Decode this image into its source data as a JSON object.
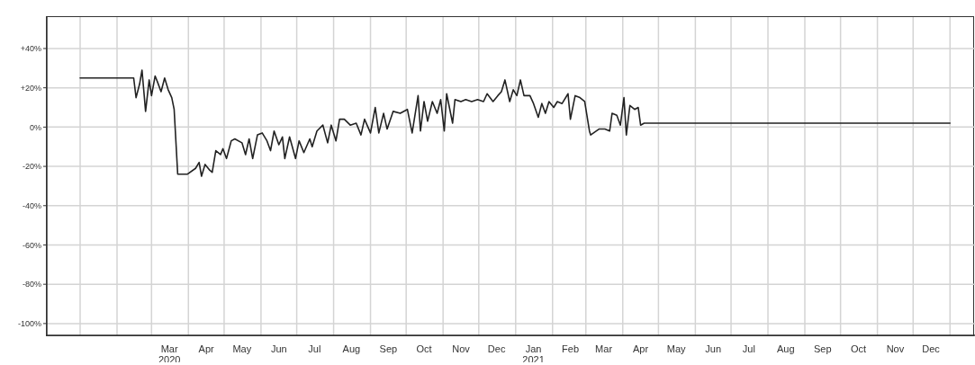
{
  "chart_data": {
    "type": "line",
    "x": [
      "2020-01-01",
      "2020-02-15",
      "2020-02-17",
      "2020-02-20",
      "2020-02-22",
      "2020-02-25",
      "2020-02-28",
      "2020-03-01",
      "2020-03-04",
      "2020-03-06",
      "2020-03-09",
      "2020-03-12",
      "2020-03-15",
      "2020-03-18",
      "2020-03-20",
      "2020-03-23",
      "2020-03-31",
      "2020-04-07",
      "2020-04-10",
      "2020-04-12",
      "2020-04-15",
      "2020-04-19",
      "2020-04-21",
      "2020-04-24",
      "2020-04-28",
      "2020-04-30",
      "2020-05-03",
      "2020-05-07",
      "2020-05-10",
      "2020-05-16",
      "2020-05-19",
      "2020-05-22",
      "2020-05-25",
      "2020-05-29",
      "2020-06-02",
      "2020-06-06",
      "2020-06-09",
      "2020-06-12",
      "2020-06-16",
      "2020-06-19",
      "2020-06-21",
      "2020-06-25",
      "2020-06-30",
      "2020-07-03",
      "2020-07-07",
      "2020-07-12",
      "2020-07-14",
      "2020-07-18",
      "2020-07-23",
      "2020-07-27",
      "2020-07-30",
      "2020-08-03",
      "2020-08-06",
      "2020-08-10",
      "2020-08-15",
      "2020-08-20",
      "2020-08-24",
      "2020-08-27",
      "2020-09-01",
      "2020-09-05",
      "2020-09-08",
      "2020-09-12",
      "2020-09-15",
      "2020-09-20",
      "2020-09-26",
      "2020-10-02",
      "2020-10-06",
      "2020-10-11",
      "2020-10-13",
      "2020-10-16",
      "2020-10-19",
      "2020-10-23",
      "2020-10-27",
      "2020-10-30",
      "2020-11-02",
      "2020-11-04",
      "2020-11-09",
      "2020-11-11",
      "2020-11-16",
      "2020-11-20",
      "2020-11-25",
      "2020-11-30",
      "2020-12-05",
      "2020-12-08",
      "2020-12-13",
      "2020-12-17",
      "2020-12-20",
      "2020-12-23",
      "2020-12-27",
      "2020-12-30",
      "2021-01-02",
      "2021-01-05",
      "2021-01-08",
      "2021-01-13",
      "2021-01-16",
      "2021-01-20",
      "2021-01-23",
      "2021-01-26",
      "2021-01-29",
      "2021-02-02",
      "2021-02-05",
      "2021-02-09",
      "2021-02-14",
      "2021-02-16",
      "2021-02-20",
      "2021-02-24",
      "2021-02-28",
      "2021-03-04",
      "2021-03-05",
      "2021-03-12",
      "2021-03-17",
      "2021-03-21",
      "2021-03-23",
      "2021-03-27",
      "2021-03-30",
      "2021-04-02",
      "2021-04-04",
      "2021-04-07",
      "2021-04-11",
      "2021-04-14",
      "2021-04-16",
      "2021-04-19",
      "2022-01-01"
    ],
    "series": [
      {
        "color": "#222222",
        "values": [
          25,
          25,
          15,
          22,
          29,
          8,
          24,
          16,
          26,
          23,
          18,
          25,
          19,
          15,
          9,
          -24,
          -24,
          -21,
          -18,
          -25,
          -19,
          -22,
          -23,
          -12,
          -14,
          -11,
          -16,
          -7,
          -6,
          -8,
          -14,
          -6,
          -16,
          -4,
          -3,
          -7,
          -12,
          -2,
          -9,
          -5,
          -16,
          -5,
          -16,
          -7,
          -13,
          -6,
          -10,
          -2,
          1,
          -8,
          1,
          -7,
          4,
          4,
          1,
          2,
          -4,
          4,
          -3,
          10,
          -3,
          7,
          -1,
          8,
          7,
          9,
          -3,
          16,
          -2,
          13,
          3,
          13,
          7,
          14,
          -2,
          17,
          2,
          14,
          13,
          14,
          13,
          14,
          13,
          17,
          13,
          16,
          18,
          24,
          13,
          19,
          16,
          24,
          16,
          16,
          12,
          5,
          12,
          7,
          13,
          10,
          13,
          12,
          17,
          4,
          16,
          15,
          13,
          -2,
          -4,
          -1,
          -1,
          -2,
          7,
          6,
          1,
          15,
          -4,
          11,
          9,
          10,
          1,
          2,
          2
        ]
      }
    ],
    "xlim": [
      "2019-12-04",
      "2022-01-22"
    ],
    "xticks": [
      {
        "value": "2020-01-01",
        "label": null
      },
      {
        "value": "2020-02-01",
        "label": null
      },
      {
        "value": "2020-03-01",
        "label": null
      },
      {
        "value": "2020-04-01",
        "label": null
      },
      {
        "value": "2020-05-01",
        "label": null
      },
      {
        "value": "2020-06-01",
        "label": null
      },
      {
        "value": "2020-07-01",
        "label": null
      },
      {
        "value": "2020-08-01",
        "label": null
      },
      {
        "value": "2020-09-01",
        "label": null
      },
      {
        "value": "2020-10-01",
        "label": null
      },
      {
        "value": "2020-11-01",
        "label": null
      },
      {
        "value": "2020-12-01",
        "label": null
      },
      {
        "value": "2021-01-01",
        "label": null
      },
      {
        "value": "2021-02-01",
        "label": null
      },
      {
        "value": "2021-03-01",
        "label": null
      },
      {
        "value": "2021-04-01",
        "label": null
      },
      {
        "value": "2021-05-01",
        "label": null
      },
      {
        "value": "2021-06-01",
        "label": null
      },
      {
        "value": "2021-07-01",
        "label": null
      },
      {
        "value": "2021-08-01",
        "label": null
      },
      {
        "value": "2021-09-01",
        "label": null
      },
      {
        "value": "2021-10-01",
        "label": null
      },
      {
        "value": "2021-11-01",
        "label": null
      },
      {
        "value": "2021-12-01",
        "label": null
      },
      {
        "value": "2022-01-01",
        "label": null
      },
      {
        "value": "2020-03-16",
        "label": "Mar\n2020"
      },
      {
        "value": "2020-04-16",
        "label": "Apr"
      },
      {
        "value": "2020-05-16",
        "label": "May"
      },
      {
        "value": "2020-06-16",
        "label": "Jun"
      },
      {
        "value": "2020-07-16",
        "label": "Jul"
      },
      {
        "value": "2020-08-16",
        "label": "Aug"
      },
      {
        "value": "2020-09-16",
        "label": "Sep"
      },
      {
        "value": "2020-10-16",
        "label": "Oct"
      },
      {
        "value": "2020-11-16",
        "label": "Nov"
      },
      {
        "value": "2020-12-16",
        "label": "Dec"
      },
      {
        "value": "2021-01-16",
        "label": "Jan\n2021"
      },
      {
        "value": "2021-02-16",
        "label": "Feb"
      },
      {
        "value": "2021-03-16",
        "label": "Mar"
      },
      {
        "value": "2021-04-16",
        "label": "Apr"
      },
      {
        "value": "2021-05-16",
        "label": "May"
      },
      {
        "value": "2021-06-16",
        "label": "Jun"
      },
      {
        "value": "2021-07-16",
        "label": "Jul"
      },
      {
        "value": "2021-08-16",
        "label": "Aug"
      },
      {
        "value": "2021-09-16",
        "label": "Sep"
      },
      {
        "value": "2021-10-16",
        "label": "Oct"
      },
      {
        "value": "2021-11-16",
        "label": "Nov"
      },
      {
        "value": "2021-12-16",
        "label": "Dec"
      }
    ],
    "ylim": [
      -106,
      56
    ],
    "yticks": [
      {
        "value": 40,
        "label": "+40%"
      },
      {
        "value": 20,
        "label": "+20%"
      },
      {
        "value": 0,
        "label": "0%"
      },
      {
        "value": -20,
        "label": "-20%"
      },
      {
        "value": -40,
        "label": "-40%"
      },
      {
        "value": -60,
        "label": "-60%"
      },
      {
        "value": -80,
        "label": "-80%"
      },
      {
        "value": -100,
        "label": "-100%"
      }
    ],
    "grid": true,
    "marker": "none",
    "line_style": "solid"
  }
}
